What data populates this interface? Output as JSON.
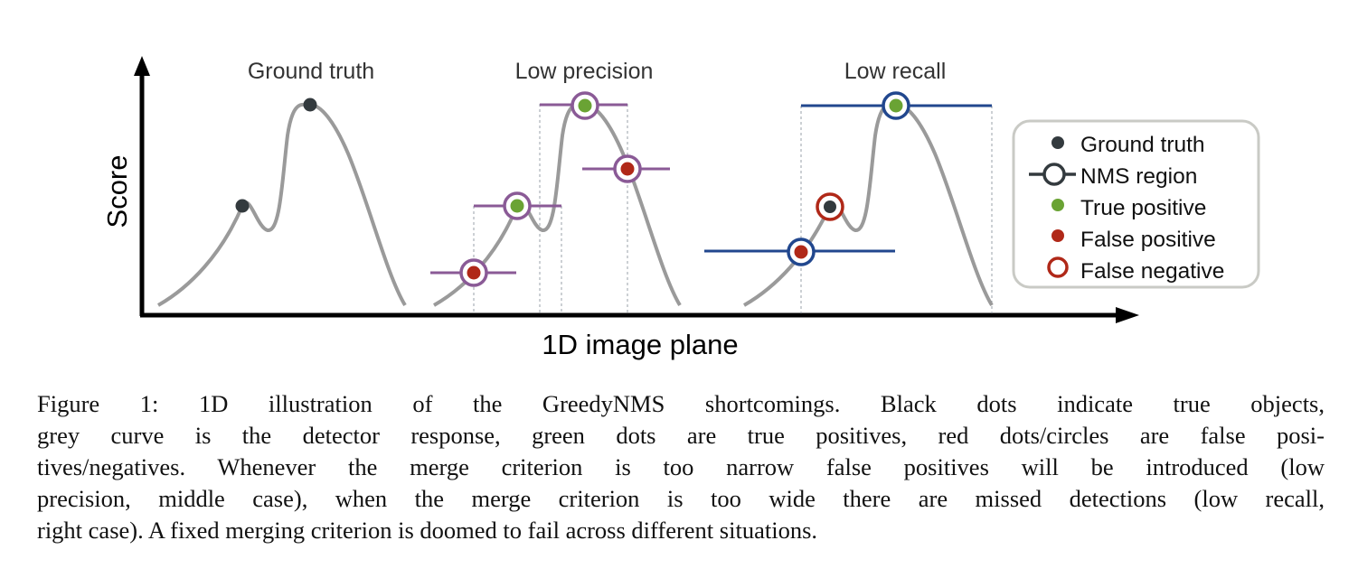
{
  "figure": {
    "y_axis_label": "Score",
    "x_axis_label": "1D image plane",
    "panels": [
      {
        "title": "Ground truth"
      },
      {
        "title": "Low precision"
      },
      {
        "title": "Low recall"
      }
    ],
    "legend": [
      {
        "label": "Ground truth",
        "marker": "dark-dot"
      },
      {
        "label": "NMS region",
        "marker": "ring-with-bar"
      },
      {
        "label": "True positive",
        "marker": "green-dot"
      },
      {
        "label": "False positive",
        "marker": "red-dot"
      },
      {
        "label": "False negative",
        "marker": "red-ring"
      }
    ],
    "colors": {
      "curve": "#9a9a9a",
      "ground_truth": "#333a3e",
      "true_positive": "#6aa334",
      "false_positive": "#b02818",
      "false_negative": "#b02818",
      "nms_precision": "#8a5a96",
      "nms_recall": "#21478e"
    }
  },
  "caption": {
    "lines": [
      "Figure 1:  1D illustration of the GreedyNMS shortcomings.  Black dots indicate true objects,",
      "grey curve is the detector response, green dots are true positives, red dots/circles are false posi-",
      "tives/negatives. Whenever the merge criterion is too narrow false positives will be introduced (low",
      "precision, middle case), when the merge criterion is too wide there are missed detections (low recall,",
      "right case). A fixed merging criterion is doomed to fail across different situations."
    ]
  }
}
